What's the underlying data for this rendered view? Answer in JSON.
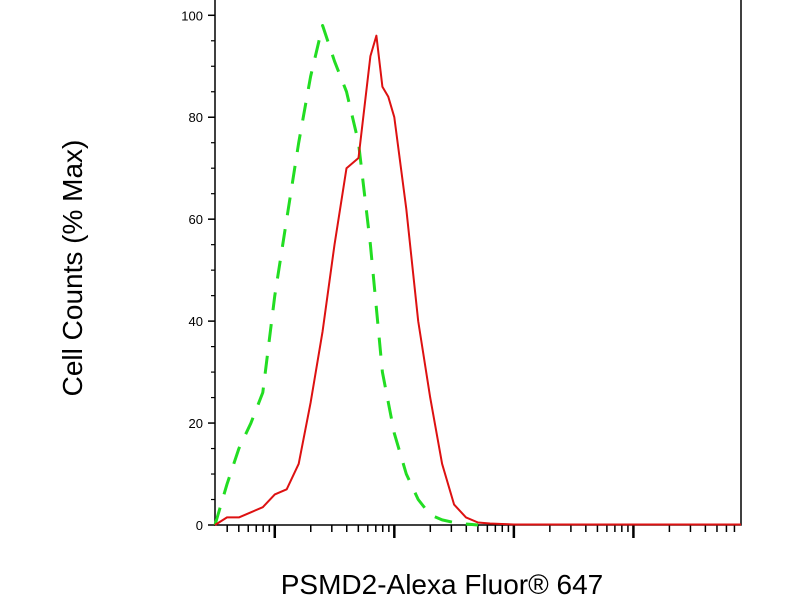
{
  "chart_data": {
    "type": "line",
    "title": "",
    "xlabel": "PSMD2-Alexa Fluor® 647",
    "ylabel": "Cell Counts (% Max)",
    "xscale": "log",
    "x_range_log10": [
      -0.5,
      3.9
    ],
    "ylim": [
      0,
      103
    ],
    "yticks": [
      0,
      20,
      40,
      60,
      80,
      100
    ],
    "ytick_labels": [
      "0",
      "20",
      "40",
      "60",
      "80",
      "100"
    ],
    "xtick_labels": [],
    "grid": false,
    "legend": "none",
    "series": [
      {
        "style": "dashed",
        "color": "#22dd22",
        "x_log10": [
          -0.5,
          -0.4,
          -0.3,
          -0.2,
          -0.1,
          0.0,
          0.1,
          0.2,
          0.3,
          0.4,
          0.5,
          0.6,
          0.7,
          0.8,
          0.9,
          1.0,
          1.1,
          1.2,
          1.3,
          1.4,
          1.5,
          1.6,
          1.7
        ],
        "y": [
          0,
          8,
          15,
          20,
          26,
          45,
          60,
          75,
          88,
          98,
          91,
          85,
          75,
          55,
          30,
          18,
          10,
          5,
          2,
          1,
          0.5,
          0.2,
          0
        ]
      },
      {
        "style": "solid",
        "color": "#dd1111",
        "x_log10": [
          -0.5,
          -0.4,
          -0.3,
          -0.2,
          -0.1,
          0.0,
          0.1,
          0.2,
          0.3,
          0.4,
          0.5,
          0.6,
          0.7,
          0.8,
          0.85,
          0.9,
          0.95,
          1.0,
          1.1,
          1.2,
          1.3,
          1.4,
          1.5,
          1.6,
          1.7,
          1.8,
          1.9,
          2.0,
          2.2,
          2.5,
          3.0,
          3.5,
          3.9
        ],
        "y": [
          0,
          1.5,
          1.5,
          2.5,
          3.5,
          6,
          7,
          12,
          24,
          38,
          55,
          70,
          72,
          92,
          96,
          86,
          84,
          80,
          62,
          40,
          25,
          12,
          4,
          1.5,
          0.5,
          0.3,
          0.2,
          0.1,
          0.1,
          0.1,
          0.1,
          0.1,
          0.1
        ]
      }
    ]
  }
}
